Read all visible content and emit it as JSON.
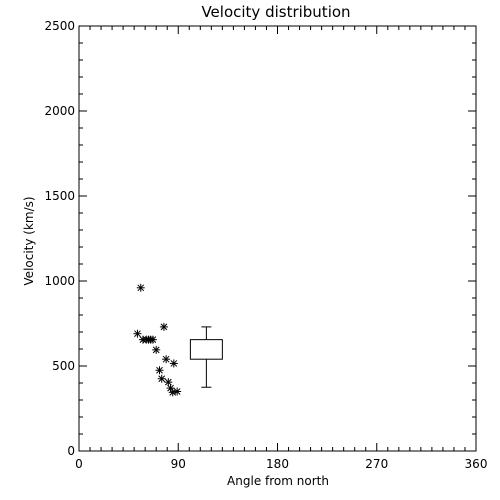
{
  "chart_data": {
    "type": "scatter",
    "title": "Velocity distribution",
    "xlabel": "Angle from north",
    "ylabel": "Velocity (km/s)",
    "xlim": [
      0,
      360
    ],
    "ylim": [
      0,
      2500
    ],
    "x_ticks": [
      0,
      90,
      180,
      270,
      360
    ],
    "y_ticks": [
      0,
      500,
      1000,
      1500,
      2000,
      2500
    ],
    "x_tick_labels": [
      "0",
      "90",
      "180",
      "270",
      "360"
    ],
    "y_tick_labels": [
      "0",
      "500",
      "1000",
      "1500",
      "2000",
      "2500"
    ],
    "grid": false,
    "marker": "asterisk",
    "points": [
      {
        "x": 56,
        "y": 960
      },
      {
        "x": 53,
        "y": 690
      },
      {
        "x": 58,
        "y": 655
      },
      {
        "x": 61,
        "y": 655
      },
      {
        "x": 63,
        "y": 655
      },
      {
        "x": 65,
        "y": 655
      },
      {
        "x": 67,
        "y": 655
      },
      {
        "x": 70,
        "y": 595
      },
      {
        "x": 77,
        "y": 730
      },
      {
        "x": 79,
        "y": 540
      },
      {
        "x": 86,
        "y": 515
      },
      {
        "x": 73,
        "y": 475
      },
      {
        "x": 75,
        "y": 425
      },
      {
        "x": 81,
        "y": 405
      },
      {
        "x": 83,
        "y": 370
      },
      {
        "x": 85,
        "y": 345
      },
      {
        "x": 89,
        "y": 350
      }
    ],
    "boxplot": {
      "x_left": 101,
      "x_right": 130,
      "whisker_low": 375,
      "q1": 540,
      "q3": 655,
      "whisker_high": 730
    }
  }
}
